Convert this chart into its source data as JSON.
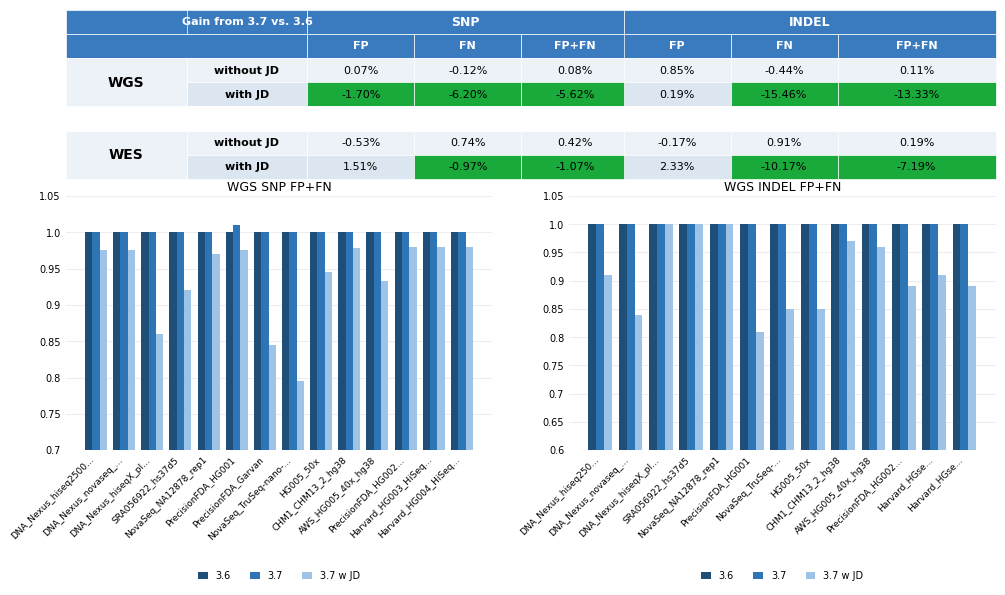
{
  "table": {
    "header_bg": "#3a7abf",
    "green_bg": "#1aaa3c",
    "col_header": "Gain from 3.7 vs. 3.6",
    "rows": [
      {
        "group": "WGS",
        "label": "without JD",
        "snp": [
          "0.07%",
          "-0.12%",
          "0.08%"
        ],
        "indel": [
          "0.85%",
          "-0.44%",
          "0.11%"
        ],
        "snp_green": [
          false,
          false,
          false
        ],
        "indel_green": [
          false,
          false,
          false
        ]
      },
      {
        "group": "WGS",
        "label": "with JD",
        "snp": [
          "-1.70%",
          "-6.20%",
          "-5.62%"
        ],
        "indel": [
          "0.19%",
          "-15.46%",
          "-13.33%"
        ],
        "snp_green": [
          true,
          true,
          true
        ],
        "indel_green": [
          false,
          true,
          true
        ]
      },
      {
        "group": "WES",
        "label": "without JD",
        "snp": [
          "-0.53%",
          "0.74%",
          "0.42%"
        ],
        "indel": [
          "-0.17%",
          "0.91%",
          "0.19%"
        ],
        "snp_green": [
          false,
          false,
          false
        ],
        "indel_green": [
          false,
          false,
          false
        ]
      },
      {
        "group": "WES",
        "label": "with JD",
        "snp": [
          "1.51%",
          "-0.97%",
          "-1.07%"
        ],
        "indel": [
          "2.33%",
          "-10.17%",
          "-7.19%"
        ],
        "snp_green": [
          false,
          true,
          true
        ],
        "indel_green": [
          false,
          true,
          true
        ]
      }
    ]
  },
  "snp_chart": {
    "title": "WGS SNP FP+FN",
    "ylim": [
      0.7,
      1.05
    ],
    "yticks": [
      0.7,
      0.75,
      0.8,
      0.85,
      0.9,
      0.95,
      1.0,
      1.05
    ],
    "categories": [
      "DNA_Nexus_hiseq2500...",
      "DNA_Nexus_novaseq_...",
      "DNA_Nexus_hiseqX_pl...",
      "SRA056922_hs37d5",
      "NovaSeq_NA12878_rep1",
      "PrecisionFDA_HG001",
      "PrecisionFDA_Garvan",
      "NovaSeq_TruSeq-nano-...",
      "HG005_50x",
      "CHM1_CHM13_2_hg38",
      "AWS_HG005_40x_hg38",
      "PrecisionFDA_HG002...",
      "Harvard_HG003_HiSeq...",
      "Harvard_HG004_HiSeq..."
    ],
    "v36": [
      1.0,
      1.0,
      1.0,
      1.0,
      1.0,
      1.0,
      1.0,
      1.0,
      1.0,
      1.0,
      1.0,
      1.0,
      1.0,
      1.0
    ],
    "v37": [
      1.0,
      1.0,
      1.0,
      1.0,
      1.0,
      1.01,
      1.0,
      1.0,
      1.0,
      1.0,
      1.0,
      1.0,
      1.0,
      1.0
    ],
    "v37jd": [
      0.975,
      0.975,
      0.86,
      0.92,
      0.97,
      0.975,
      0.845,
      0.795,
      0.945,
      0.978,
      0.933,
      0.98,
      0.98,
      0.98
    ]
  },
  "indel_chart": {
    "title": "WGS INDEL FP+FN",
    "ylim": [
      0.6,
      1.05
    ],
    "yticks": [
      0.6,
      0.65,
      0.7,
      0.75,
      0.8,
      0.85,
      0.9,
      0.95,
      1.0,
      1.05
    ],
    "categories": [
      "DNA_Nexus_hiseq250...",
      "DNA_Nexus_novaseq_...",
      "DNA_Nexus_hiseqX_pl...",
      "SRA056922_hs37d5",
      "NovaSeq_NA12878_rep1",
      "PrecisionFDA_HG001",
      "NovaSeq_TruSeq-...",
      "HG005_50x",
      "CHM1_CHM13_2_hg38",
      "AWS_HG005_40x_hg38",
      "PrecisionFDA_HG002...",
      "Harvard_HGse...",
      "Harvard_HGse..."
    ],
    "v36": [
      1.0,
      1.0,
      1.0,
      1.0,
      1.0,
      1.0,
      1.0,
      1.0,
      1.0,
      1.0,
      1.0,
      1.0,
      1.0
    ],
    "v37": [
      1.0,
      1.0,
      1.0,
      1.0,
      1.0,
      1.0,
      1.0,
      1.0,
      1.0,
      1.0,
      1.0,
      1.0,
      1.0
    ],
    "v37jd": [
      0.91,
      0.84,
      1.0,
      1.0,
      1.0,
      0.81,
      0.85,
      0.85,
      0.97,
      0.96,
      0.89,
      0.91,
      0.89
    ]
  },
  "colors": {
    "v36": "#1f4e79",
    "v37": "#2e75b6",
    "v37jd": "#9dc3e6",
    "header_blue": "#3a7abf",
    "row_light": "#dce6f1",
    "row_lighter": "#edf2f9"
  }
}
